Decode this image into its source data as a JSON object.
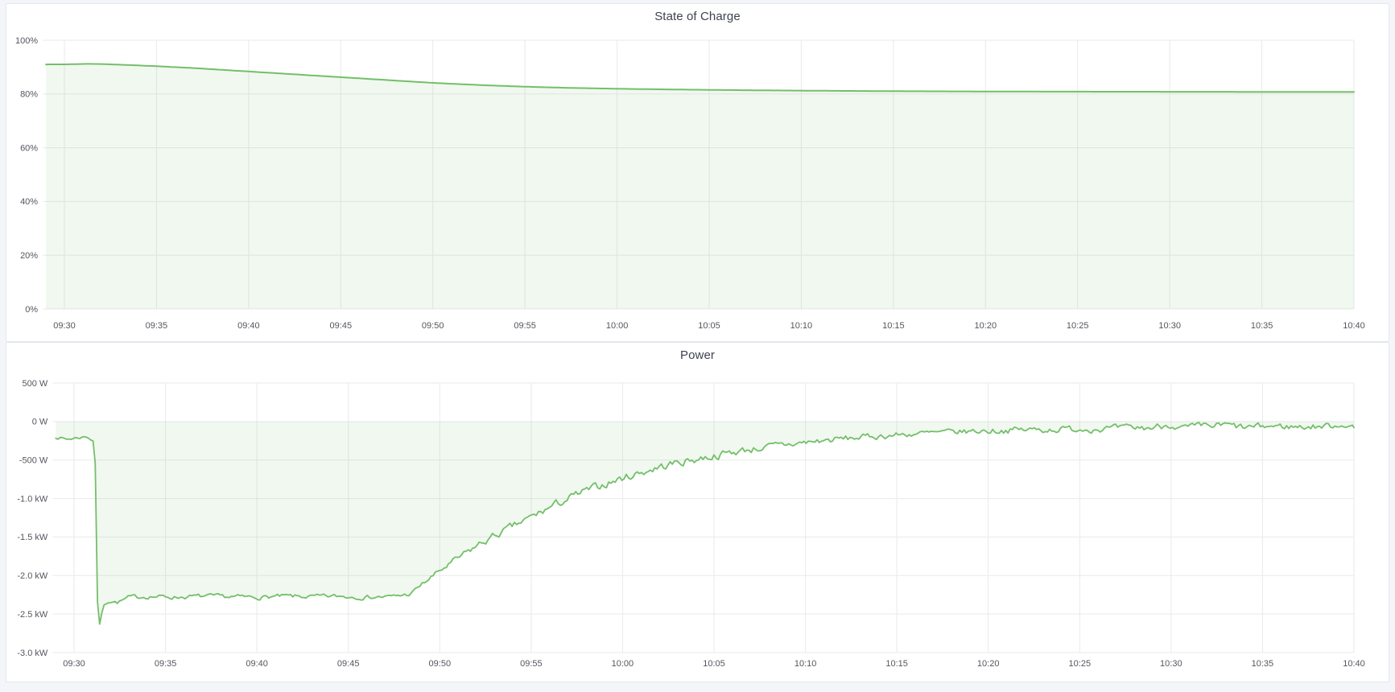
{
  "page": {
    "colors": {
      "background": "#f4f5f9",
      "panel_background": "#ffffff",
      "panel_border": "#e4e7ee",
      "grid": "#e9eaec",
      "axis_text": "#54565e",
      "title_text": "#3f4250",
      "series_green": "#73bf69",
      "series_fill": "rgba(115,191,105,0.10)"
    }
  },
  "chart_data": [
    {
      "type": "area",
      "title": "State of Charge",
      "unit": "percent",
      "legend": "none",
      "grid": true,
      "x_axis": {
        "start_min": -1,
        "end_min": 70,
        "tick_interval_min": 5,
        "ticks": [
          {
            "t": 0,
            "label": "09:30"
          },
          {
            "t": 5,
            "label": "09:35"
          },
          {
            "t": 10,
            "label": "09:40"
          },
          {
            "t": 15,
            "label": "09:45"
          },
          {
            "t": 20,
            "label": "09:50"
          },
          {
            "t": 25,
            "label": "09:55"
          },
          {
            "t": 30,
            "label": "10:00"
          },
          {
            "t": 35,
            "label": "10:05"
          },
          {
            "t": 40,
            "label": "10:10"
          },
          {
            "t": 45,
            "label": "10:15"
          },
          {
            "t": 50,
            "label": "10:20"
          },
          {
            "t": 55,
            "label": "10:25"
          },
          {
            "t": 60,
            "label": "10:30"
          },
          {
            "t": 65,
            "label": "10:35"
          },
          {
            "t": 70,
            "label": "10:40"
          }
        ]
      },
      "y_axis": {
        "min": 0,
        "max": 100,
        "ticks": [
          {
            "v": 100,
            "label": "100%"
          },
          {
            "v": 80,
            "label": "80%"
          },
          {
            "v": 60,
            "label": "60%"
          },
          {
            "v": 40,
            "label": "40%"
          },
          {
            "v": 20,
            "label": "20%"
          },
          {
            "v": 0,
            "label": "0%"
          }
        ]
      },
      "series": [
        {
          "name": "State of Charge",
          "color": "#73bf69",
          "fill": "rgba(115,191,105,0.10)",
          "fill_to": 0,
          "line_width": 2,
          "step_min": 0.2,
          "noise_seed": 11,
          "noise_factor": 0,
          "points_t_value_noise": [
            [
              -1,
              91.0,
              0
            ],
            [
              0,
              91.02,
              0
            ],
            [
              1.2,
              91.2,
              0
            ],
            [
              2,
              91.15,
              0
            ],
            [
              3,
              90.9,
              0
            ],
            [
              5,
              90.35,
              0
            ],
            [
              7,
              89.65,
              0
            ],
            [
              9,
              88.8,
              0
            ],
            [
              11,
              87.95,
              0
            ],
            [
              13,
              87.1,
              0
            ],
            [
              15,
              86.25,
              0
            ],
            [
              17,
              85.4,
              0
            ],
            [
              19,
              84.55,
              0
            ],
            [
              20,
              84.15,
              0
            ],
            [
              21,
              83.8,
              0
            ],
            [
              22,
              83.5,
              0
            ],
            [
              23,
              83.2,
              0
            ],
            [
              24,
              82.95,
              0
            ],
            [
              25,
              82.72,
              0
            ],
            [
              26,
              82.52,
              0
            ],
            [
              27,
              82.35,
              0
            ],
            [
              28,
              82.2,
              0
            ],
            [
              29,
              82.07,
              0
            ],
            [
              30,
              81.95,
              0
            ],
            [
              31,
              81.85,
              0
            ],
            [
              32,
              81.76,
              0
            ],
            [
              33,
              81.68,
              0
            ],
            [
              34,
              81.6,
              0
            ],
            [
              35,
              81.53,
              0
            ],
            [
              36,
              81.47,
              0
            ],
            [
              37,
              81.41,
              0
            ],
            [
              38,
              81.35,
              0
            ],
            [
              39,
              81.3,
              0
            ],
            [
              40,
              81.25,
              0
            ],
            [
              42,
              81.16,
              0
            ],
            [
              44,
              81.08,
              0
            ],
            [
              46,
              81.02,
              0
            ],
            [
              48,
              80.97,
              0
            ],
            [
              50,
              80.93,
              0
            ],
            [
              53,
              80.88,
              0
            ],
            [
              56,
              80.85,
              0
            ],
            [
              60,
              80.82,
              0
            ],
            [
              64,
              80.79,
              0
            ],
            [
              68,
              80.77,
              0
            ],
            [
              70,
              80.76,
              0
            ]
          ]
        }
      ]
    },
    {
      "type": "area",
      "title": "Power",
      "unit": "watt",
      "legend": "none",
      "grid": true,
      "x_axis": {
        "start_min": -1,
        "end_min": 70,
        "tick_interval_min": 5,
        "ticks": [
          {
            "t": 0,
            "label": "09:30"
          },
          {
            "t": 5,
            "label": "09:35"
          },
          {
            "t": 10,
            "label": "09:40"
          },
          {
            "t": 15,
            "label": "09:45"
          },
          {
            "t": 20,
            "label": "09:50"
          },
          {
            "t": 25,
            "label": "09:55"
          },
          {
            "t": 30,
            "label": "10:00"
          },
          {
            "t": 35,
            "label": "10:05"
          },
          {
            "t": 40,
            "label": "10:10"
          },
          {
            "t": 45,
            "label": "10:15"
          },
          {
            "t": 50,
            "label": "10:20"
          },
          {
            "t": 55,
            "label": "10:25"
          },
          {
            "t": 60,
            "label": "10:30"
          },
          {
            "t": 65,
            "label": "10:35"
          },
          {
            "t": 70,
            "label": "10:40"
          }
        ]
      },
      "y_axis": {
        "min": -3000,
        "max": 500,
        "ticks": [
          {
            "v": 500,
            "label": "500 W"
          },
          {
            "v": 0,
            "label": "0 W"
          },
          {
            "v": -500,
            "label": "-500 W"
          },
          {
            "v": -1000,
            "label": "-1.0 kW"
          },
          {
            "v": -1500,
            "label": "-1.5 kW"
          },
          {
            "v": -2000,
            "label": "-2.0 kW"
          },
          {
            "v": -2500,
            "label": "-2.5 kW"
          },
          {
            "v": -3000,
            "label": "-3.0 kW"
          }
        ]
      },
      "series": [
        {
          "name": "Power",
          "color": "#73bf69",
          "fill": "rgba(115,191,105,0.10)",
          "fill_to": 0,
          "line_width": 1.8,
          "step_min": 0.12,
          "noise_seed": 7,
          "noise_factor": 3.0,
          "points_t_value_noise": [
            [
              -1,
              -200,
              12
            ],
            [
              -0.4,
              -230,
              12
            ],
            [
              0.2,
              -210,
              12
            ],
            [
              0.7,
              -195,
              10
            ],
            [
              1.0,
              -245,
              8
            ],
            [
              1.15,
              -262,
              5
            ],
            [
              1.22,
              -2200,
              5
            ],
            [
              1.4,
              -2630,
              5
            ],
            [
              1.62,
              -2380,
              8
            ],
            [
              1.9,
              -2330,
              12
            ],
            [
              2.4,
              -2350,
              14
            ],
            [
              3,
              -2285,
              16
            ],
            [
              4,
              -2270,
              16
            ],
            [
              5.5,
              -2280,
              16
            ],
            [
              7,
              -2270,
              16
            ],
            [
              8.5,
              -2276,
              16
            ],
            [
              10,
              -2282,
              16
            ],
            [
              11.5,
              -2270,
              16
            ],
            [
              13,
              -2276,
              16
            ],
            [
              14.5,
              -2270,
              16
            ],
            [
              16,
              -2280,
              16
            ],
            [
              17.3,
              -2274,
              14
            ],
            [
              18.4,
              -2242,
              14
            ],
            [
              19,
              -2120,
              18
            ],
            [
              20,
              -1940,
              20
            ],
            [
              21,
              -1780,
              24
            ],
            [
              22,
              -1620,
              26
            ],
            [
              23,
              -1485,
              28
            ],
            [
              24,
              -1365,
              28
            ],
            [
              25,
              -1245,
              30
            ],
            [
              26,
              -1120,
              30
            ],
            [
              27,
              -1005,
              32
            ],
            [
              28,
              -905,
              30
            ],
            [
              29,
              -815,
              30
            ],
            [
              30,
              -735,
              30
            ],
            [
              31,
              -660,
              30
            ],
            [
              32,
              -595,
              32
            ],
            [
              33,
              -535,
              30
            ],
            [
              34,
              -490,
              30
            ],
            [
              35,
              -445,
              30
            ],
            [
              36,
              -400,
              28
            ],
            [
              37,
              -360,
              28
            ],
            [
              38,
              -330,
              26
            ],
            [
              39,
              -300,
              26
            ],
            [
              40,
              -272,
              26
            ],
            [
              41,
              -248,
              24
            ],
            [
              42,
              -225,
              24
            ],
            [
              43,
              -205,
              22
            ],
            [
              44,
              -190,
              22
            ],
            [
              45,
              -175,
              22
            ],
            [
              46,
              -160,
              22
            ],
            [
              47,
              -150,
              22
            ],
            [
              48,
              -140,
              22
            ],
            [
              49,
              -128,
              22
            ],
            [
              50,
              -120,
              24
            ],
            [
              51.5,
              -110,
              24
            ],
            [
              53,
              -105,
              24
            ],
            [
              55,
              -95,
              24
            ],
            [
              57,
              -90,
              24
            ],
            [
              59,
              -80,
              26
            ],
            [
              60,
              -30,
              26
            ],
            [
              60.4,
              -90,
              24
            ],
            [
              61.5,
              -70,
              26
            ],
            [
              63,
              -50,
              28
            ],
            [
              64,
              -80,
              24
            ],
            [
              65.5,
              -60,
              24
            ],
            [
              67,
              -70,
              24
            ],
            [
              68.5,
              -60,
              24
            ],
            [
              69.6,
              -35,
              22
            ],
            [
              70,
              -80,
              16
            ]
          ]
        }
      ]
    }
  ]
}
